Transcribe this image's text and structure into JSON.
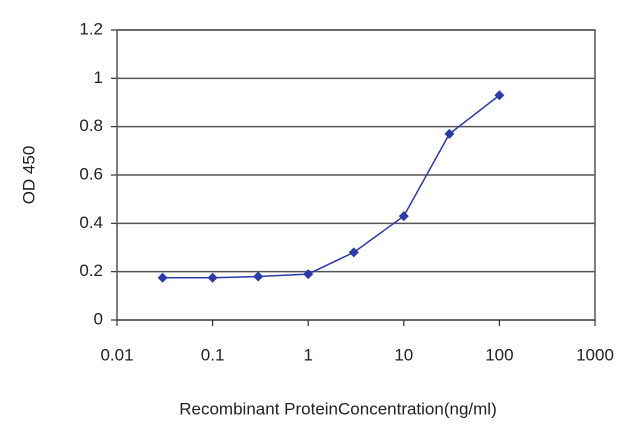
{
  "chart_data": {
    "type": "line",
    "x_label": "Recombinant ProteinConcentration(ng/ml)",
    "y_label": "OD 450",
    "x": [
      0.03,
      0.1,
      0.3,
      1,
      3,
      10,
      30,
      100
    ],
    "series": [
      {
        "color": "#2a3aa8",
        "values": [
          0.175,
          0.175,
          0.18,
          0.19,
          0.28,
          0.43,
          0.77,
          0.93
        ]
      }
    ],
    "xscale": "log",
    "xlim": [
      0.01,
      1000
    ],
    "xticks": [
      0.01,
      0.1,
      1,
      10,
      100,
      1000
    ],
    "ylim": [
      0,
      1.2
    ],
    "yticks": [
      0,
      0.2,
      0.4,
      0.6,
      0.8,
      1,
      1.2
    ],
    "grid": true
  }
}
